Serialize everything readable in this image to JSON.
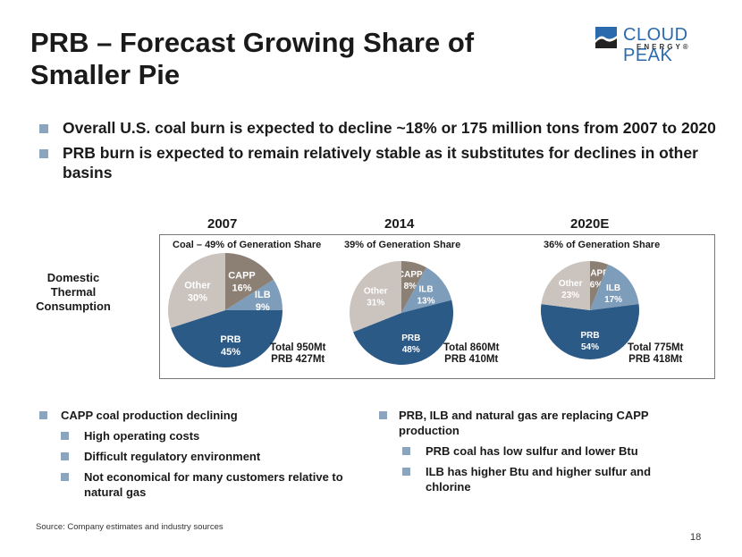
{
  "slide": {
    "title": "PRB – Forecast Growing Share of Smaller Pie",
    "page_number": "18",
    "source": "Source:  Company estimates and industry sources"
  },
  "logo": {
    "name": "CLOUD PEAK",
    "sub": "ENERGY®"
  },
  "bullets": [
    "Overall U.S. coal burn is expected to decline ~18% or 175 million tons from 2007 to 2020",
    "PRB burn is expected to remain relatively stable as it substitutes for declines in other basins"
  ],
  "row_label": "Domestic Thermal Consumption",
  "colors": {
    "CAPP": "#8c7f74",
    "ILB": "#7d9dbb",
    "PRB": "#2b5a87",
    "Other": "#cbc3bd",
    "bullet": "#8aa5bd"
  },
  "chart_data": [
    {
      "type": "pie",
      "year": "2007",
      "title": "Coal – 49% of Generation Share",
      "slices": [
        {
          "label": "CAPP",
          "value": 16
        },
        {
          "label": "ILB",
          "value": 9
        },
        {
          "label": "PRB",
          "value": 45
        },
        {
          "label": "Other",
          "value": 30
        }
      ],
      "total_label": "Total 950Mt",
      "prb_label": "PRB 427Mt"
    },
    {
      "type": "pie",
      "year": "2014",
      "title": "39% of Generation Share",
      "slices": [
        {
          "label": "CAPP",
          "value": 8
        },
        {
          "label": "ILB",
          "value": 13
        },
        {
          "label": "PRB",
          "value": 48
        },
        {
          "label": "Other",
          "value": 31
        }
      ],
      "total_label": "Total 860Mt",
      "prb_label": "PRB 410Mt"
    },
    {
      "type": "pie",
      "year": "2020E",
      "title": "36% of Generation Share",
      "slices": [
        {
          "label": "CAPP",
          "value": 6
        },
        {
          "label": "ILB",
          "value": 17
        },
        {
          "label": "PRB",
          "value": 54
        },
        {
          "label": "Other",
          "value": 23
        }
      ],
      "total_label": "Total 775Mt",
      "prb_label": "PRB 418Mt"
    }
  ],
  "lower_left": {
    "main": "CAPP coal production declining",
    "subs": [
      "High operating costs",
      "Difficult regulatory environment",
      "Not economical for many customers relative to natural gas"
    ]
  },
  "lower_right": {
    "main": "PRB, ILB and natural gas are replacing CAPP production",
    "subs": [
      "PRB coal has low sulfur and lower Btu",
      "ILB has higher Btu and higher sulfur and chlorine"
    ]
  }
}
